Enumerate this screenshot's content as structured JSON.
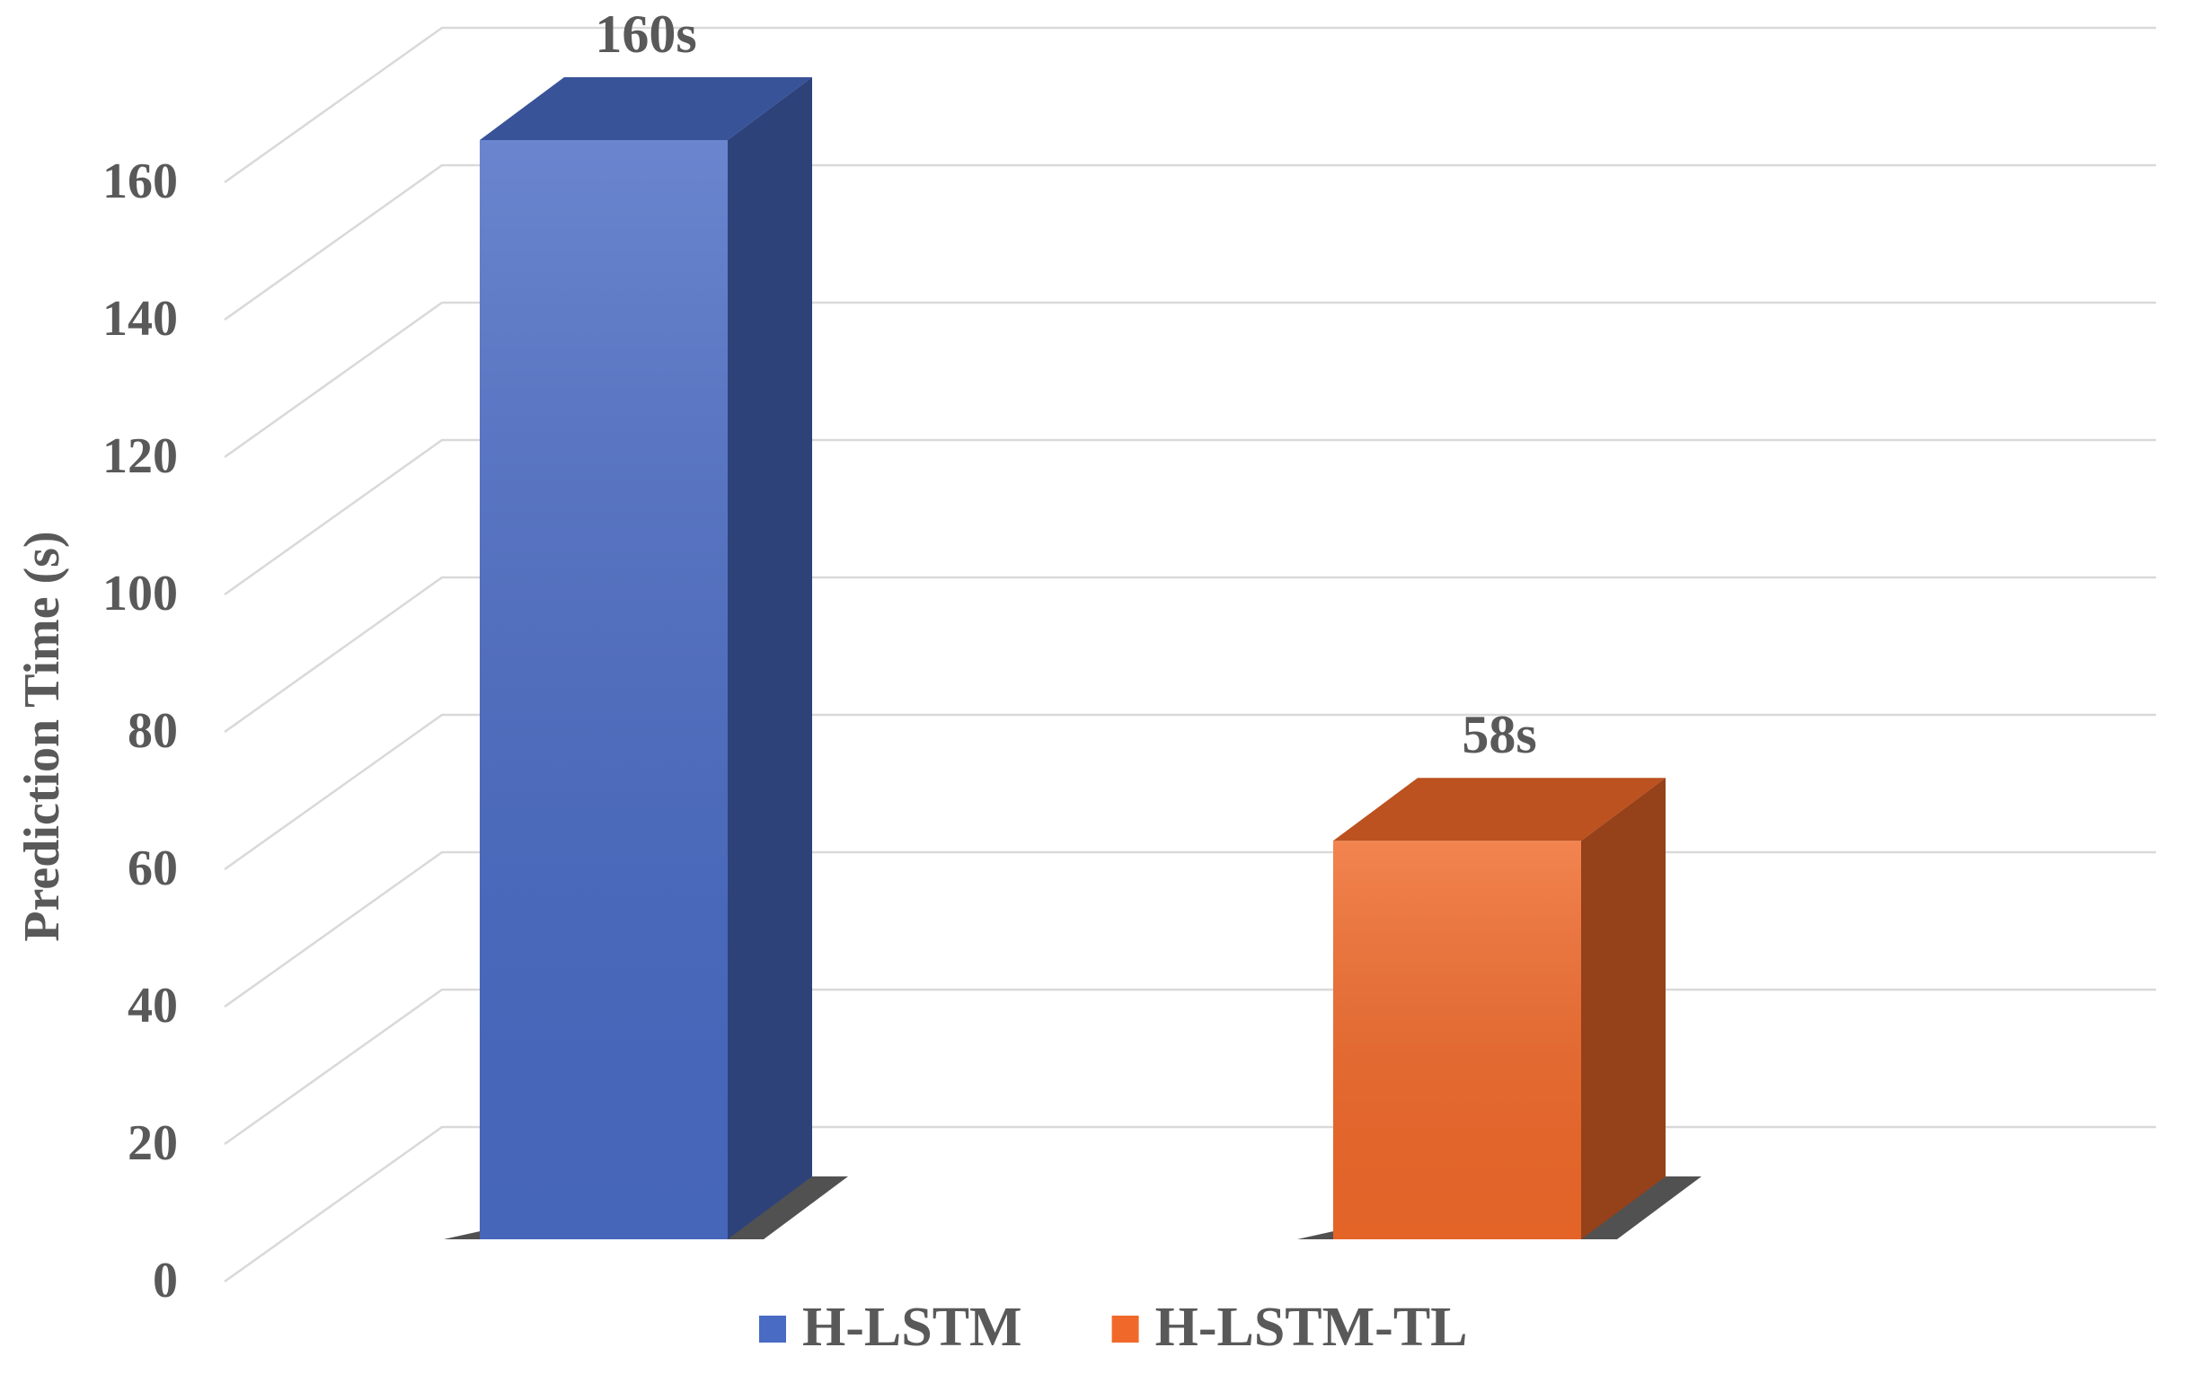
{
  "chart_data": {
    "type": "bar3d",
    "y_label": "Prediction Time (s)",
    "ylim": [
      0,
      160
    ],
    "yticks": [
      0,
      20,
      40,
      60,
      80,
      100,
      120,
      140,
      160
    ],
    "grid": true,
    "series": [
      {
        "name": "H-LSTM",
        "color": "#4a6bc4",
        "values": [
          160
        ],
        "value_labels": [
          "160s"
        ]
      },
      {
        "name": "H-LSTM-TL",
        "color": "#f0692a",
        "values": [
          58
        ],
        "value_labels": [
          "58s"
        ]
      }
    ]
  }
}
